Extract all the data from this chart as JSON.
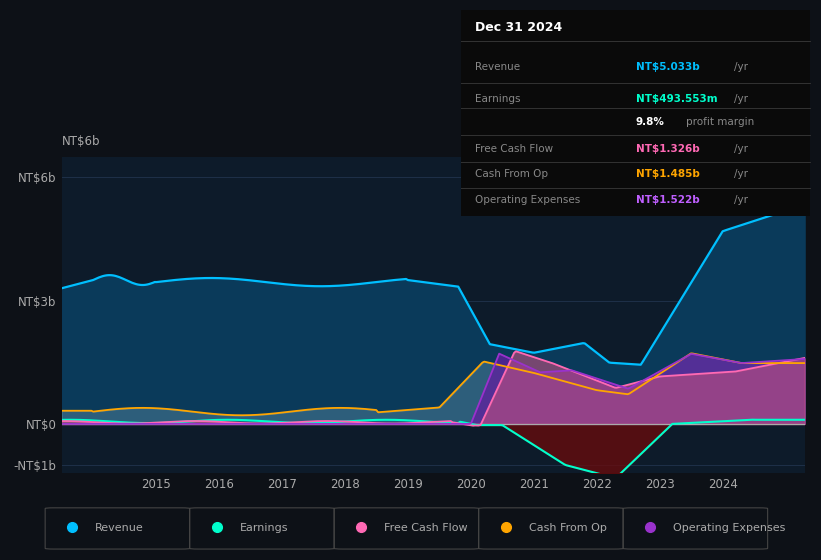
{
  "bg_color": "#0d1117",
  "plot_bg_color": "#0d1b2a",
  "title": "Dec 31 2024",
  "ylim": [
    -1.2,
    6.5
  ],
  "ytick_positions": [
    -1,
    0,
    3,
    6
  ],
  "ytick_labels": [
    "-NT$1b",
    "NT$0",
    "NT$3b",
    "NT$6b"
  ],
  "xlim_start": 2013.5,
  "xlim_end": 2025.3,
  "xtick_years": [
    2015,
    2016,
    2017,
    2018,
    2019,
    2020,
    2021,
    2022,
    2023,
    2024
  ],
  "colors": {
    "revenue": "#00bfff",
    "revenue_fill": "#0a3a5a",
    "earnings": "#00ffcc",
    "earnings_neg_fill": "#6b0a0a",
    "free_cash_flow": "#ff69b4",
    "free_cash_flow_fill": "#c05080",
    "cash_from_op": "#ffa500",
    "cash_from_op_fill": "#7fb3c8",
    "op_expenses": "#9932cc",
    "op_expenses_fill": "#6020a0"
  },
  "legend": [
    {
      "label": "Revenue",
      "color": "#00bfff"
    },
    {
      "label": "Earnings",
      "color": "#00ffcc"
    },
    {
      "label": "Free Cash Flow",
      "color": "#ff69b4"
    },
    {
      "label": "Cash From Op",
      "color": "#ffa500"
    },
    {
      "label": "Operating Expenses",
      "color": "#9932cc"
    }
  ],
  "info_rows": [
    {
      "label": "Revenue",
      "value": "NT$5.033b",
      "value_color": "#00bfff",
      "suffix": " /yr"
    },
    {
      "label": "Earnings",
      "value": "NT$493.553m",
      "value_color": "#00ffcc",
      "suffix": " /yr"
    },
    {
      "label": "",
      "value": "9.8%",
      "value_color": "#ffffff",
      "suffix": " profit margin"
    },
    {
      "label": "Free Cash Flow",
      "value": "NT$1.326b",
      "value_color": "#ff69b4",
      "suffix": " /yr"
    },
    {
      "label": "Cash From Op",
      "value": "NT$1.485b",
      "value_color": "#ffa500",
      "suffix": " /yr"
    },
    {
      "label": "Operating Expenses",
      "value": "NT$1.522b",
      "value_color": "#bf5fff",
      "suffix": " /yr"
    }
  ]
}
